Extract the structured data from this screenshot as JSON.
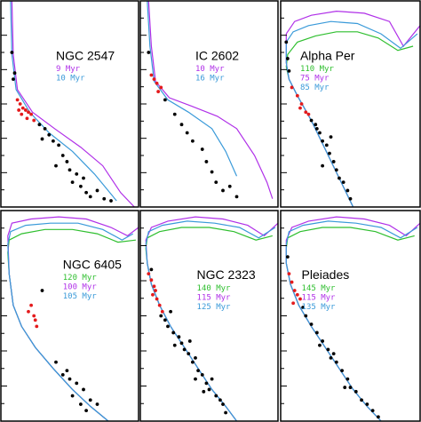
{
  "chart_data": [
    {
      "type": "scatter",
      "title": "NGC 2547",
      "xlim": [
        0,
        100
      ],
      "ylim": [
        100,
        0
      ],
      "series": [
        {
          "name": "9 Myr",
          "color": "#b030e8",
          "x": [
            8,
            9,
            12,
            23,
            39,
            58,
            74,
            87,
            97
          ],
          "values": [
            0,
            26,
            43,
            54,
            62,
            71,
            80,
            93,
            100
          ]
        },
        {
          "name": "10 Myr",
          "color": "#3a9ad9",
          "x": [
            7,
            8,
            11,
            21,
            35,
            52,
            68,
            84
          ],
          "values": [
            0,
            26,
            43,
            54,
            64,
            73,
            84,
            97
          ]
        },
        {
          "color": "#e41a1c",
          "x": [
            12,
            14,
            16,
            18,
            20,
            22,
            15,
            19,
            24,
            13
          ],
          "values": [
            48,
            50,
            52,
            53,
            54,
            55,
            55,
            57,
            58,
            53
          ]
        },
        {
          "color": "#000000",
          "x": [
            28,
            32,
            35,
            30,
            38,
            42,
            45,
            48,
            40,
            50,
            55,
            52,
            58,
            60,
            62,
            65,
            70,
            75,
            80,
            10,
            8,
            9
          ],
          "values": [
            60,
            62,
            65,
            67,
            68,
            70,
            75,
            78,
            80,
            82,
            84,
            88,
            90,
            86,
            93,
            95,
            92,
            96,
            97,
            35,
            25,
            38
          ]
        }
      ]
    },
    {
      "type": "scatter",
      "title": "IC 2602",
      "xlim": [
        0,
        100
      ],
      "ylim": [
        100,
        0
      ],
      "series": [
        {
          "name": "10 Myr",
          "color": "#b030e8",
          "x": [
            6,
            8,
            11,
            21,
            37,
            56,
            70,
            83,
            92,
            96
          ],
          "values": [
            0,
            22,
            39,
            47,
            51,
            56,
            62,
            75,
            88,
            96
          ]
        },
        {
          "name": "16 Myr",
          "color": "#3a9ad9",
          "x": [
            5,
            7,
            10,
            20,
            35,
            52,
            62,
            70
          ],
          "values": [
            0,
            22,
            39,
            48,
            54,
            62,
            73,
            85
          ]
        },
        {
          "color": "#e41a1c",
          "x": [
            8,
            10,
            12,
            15,
            13
          ],
          "values": [
            36,
            38,
            40,
            42,
            44
          ]
        },
        {
          "color": "#000000",
          "x": [
            6,
            18,
            25,
            30,
            38,
            48,
            52,
            55,
            60,
            65,
            70,
            45,
            34
          ],
          "values": [
            25,
            48,
            55,
            60,
            68,
            78,
            83,
            88,
            92,
            90,
            95,
            72,
            64
          ]
        }
      ]
    },
    {
      "type": "scatter",
      "title": "Alpha Per",
      "xlim": [
        0,
        100
      ],
      "ylim": [
        100,
        0
      ],
      "series": [
        {
          "name": "110 Myr",
          "color": "#2fbf2f",
          "x": [
            95,
            84,
            70,
            55,
            40,
            25,
            12,
            5,
            4,
            6,
            12,
            22,
            32,
            42,
            52
          ],
          "values": [
            22,
            24,
            18,
            15,
            15,
            17,
            20,
            26,
            32,
            38,
            46,
            58,
            72,
            86,
            100
          ]
        },
        {
          "name": "75 Myr",
          "color": "#b030e8",
          "x": [
            100,
            88,
            78,
            60,
            40,
            22,
            10,
            4,
            4,
            6,
            12,
            22,
            32,
            42,
            52
          ],
          "values": [
            12,
            22,
            10,
            6,
            5,
            7,
            10,
            16,
            30,
            38,
            46,
            58,
            72,
            86,
            100
          ]
        },
        {
          "name": "85 Myr",
          "color": "#3a9ad9",
          "x": [
            98,
            86,
            72,
            55,
            36,
            20,
            9,
            4,
            4,
            6,
            12,
            22,
            32,
            42,
            52
          ],
          "values": [
            16,
            23,
            16,
            11,
            10,
            12,
            15,
            20,
            30,
            38,
            46,
            58,
            72,
            86,
            100
          ]
        },
        {
          "color": "#e41a1c",
          "x": [
            8,
            12,
            15,
            14,
            18,
            20
          ],
          "values": [
            42,
            46,
            50,
            52,
            54,
            55
          ]
        },
        {
          "color": "#000000",
          "x": [
            4,
            5,
            6,
            22,
            25,
            28,
            30,
            33,
            35,
            38,
            40,
            42,
            45,
            48,
            30,
            50,
            36,
            26
          ],
          "values": [
            20,
            28,
            34,
            58,
            60,
            64,
            68,
            70,
            74,
            78,
            82,
            86,
            88,
            92,
            80,
            96,
            66,
            62
          ]
        }
      ]
    },
    {
      "type": "scatter",
      "title": "NGC 6405",
      "xlim": [
        0,
        100
      ],
      "ylim": [
        100,
        0
      ],
      "series": [
        {
          "name": "120 Myr",
          "color": "#2fbf2f",
          "x": [
            98,
            85,
            70,
            52,
            32,
            15,
            6,
            5,
            6,
            9,
            15,
            25,
            38,
            52,
            65,
            78
          ],
          "values": [
            14,
            15,
            11,
            9,
            9,
            11,
            14,
            20,
            30,
            45,
            55,
            65,
            75,
            85,
            93,
            100
          ]
        },
        {
          "name": "100 Myr",
          "color": "#b030e8",
          "x": [
            100,
            92,
            80,
            62,
            42,
            22,
            8,
            5,
            6,
            9,
            15,
            25,
            38,
            52,
            65,
            78
          ],
          "values": [
            8,
            12,
            8,
            4,
            3,
            4,
            6,
            12,
            30,
            45,
            55,
            65,
            75,
            85,
            93,
            100
          ]
        },
        {
          "name": "105 Myr",
          "color": "#3a9ad9",
          "x": [
            96,
            88,
            74,
            56,
            36,
            18,
            7,
            5,
            6,
            9,
            15,
            25,
            38,
            52,
            65,
            78
          ],
          "values": [
            11,
            14,
            9,
            6,
            6,
            7,
            10,
            16,
            30,
            45,
            55,
            65,
            75,
            85,
            93,
            100
          ]
        },
        {
          "color": "#e41a1c",
          "x": [
            22,
            24,
            25,
            26,
            20
          ],
          "values": [
            45,
            50,
            52,
            55,
            48
          ]
        },
        {
          "color": "#000000",
          "x": [
            30,
            40,
            45,
            50,
            55,
            60,
            52,
            48,
            65,
            70,
            58,
            62
          ],
          "values": [
            38,
            72,
            78,
            80,
            82,
            85,
            88,
            76,
            90,
            92,
            92,
            95
          ]
        }
      ]
    },
    {
      "type": "scatter",
      "title": "NGC 2323",
      "xlim": [
        0,
        100
      ],
      "ylim": [
        100,
        0
      ],
      "series": [
        {
          "name": "140 Myr",
          "color": "#2fbf2f",
          "x": [
            96,
            84,
            68,
            50,
            30,
            14,
            5,
            4,
            5,
            8,
            14,
            22,
            32,
            42,
            52,
            62,
            70
          ],
          "values": [
            12,
            14,
            10,
            8,
            8,
            10,
            13,
            18,
            25,
            35,
            45,
            55,
            65,
            75,
            85,
            93,
            100
          ]
        },
        {
          "name": "115 Myr",
          "color": "#b030e8",
          "x": [
            100,
            90,
            78,
            60,
            40,
            20,
            8,
            4,
            5,
            8,
            14,
            22,
            32,
            42,
            52,
            62,
            70
          ],
          "values": [
            6,
            12,
            7,
            4,
            3,
            5,
            8,
            14,
            25,
            35,
            45,
            55,
            65,
            75,
            85,
            93,
            100
          ]
        },
        {
          "name": "125 Myr",
          "color": "#3a9ad9",
          "x": [
            98,
            86,
            72,
            54,
            34,
            16,
            6,
            4,
            5,
            8,
            14,
            22,
            32,
            42,
            52,
            62,
            70
          ],
          "values": [
            8,
            13,
            8,
            6,
            5,
            7,
            10,
            16,
            25,
            35,
            45,
            55,
            65,
            75,
            85,
            93,
            100
          ]
        },
        {
          "color": "#e41a1c",
          "x": [
            6,
            8,
            10,
            9,
            12,
            14,
            16,
            11
          ],
          "values": [
            30,
            33,
            36,
            40,
            42,
            45,
            48,
            38
          ]
        },
        {
          "color": "#000000",
          "x": [
            8,
            15,
            18,
            20,
            24,
            28,
            30,
            32,
            35,
            38,
            40,
            42,
            45,
            48,
            50,
            52,
            55,
            58,
            60,
            46,
            36,
            25,
            62,
            22,
            40
          ],
          "values": [
            28,
            50,
            52,
            55,
            58,
            60,
            63,
            66,
            68,
            72,
            70,
            76,
            78,
            82,
            85,
            80,
            88,
            90,
            92,
            86,
            62,
            64,
            96,
            48,
            80
          ]
        }
      ]
    },
    {
      "type": "scatter",
      "title": "Pleiades",
      "xlim": [
        0,
        100
      ],
      "ylim": [
        100,
        0
      ],
      "series": [
        {
          "name": "145 Myr",
          "color": "#2fbf2f",
          "x": [
            96,
            84,
            68,
            50,
            30,
            14,
            5,
            4,
            4,
            7,
            13,
            22,
            32,
            42,
            52,
            62,
            72
          ],
          "values": [
            12,
            14,
            10,
            8,
            8,
            10,
            13,
            18,
            25,
            35,
            45,
            55,
            65,
            75,
            85,
            93,
            100
          ]
        },
        {
          "name": "115 Myr",
          "color": "#b030e8",
          "x": [
            100,
            90,
            78,
            60,
            40,
            20,
            8,
            4,
            4,
            7,
            13,
            22,
            32,
            42,
            52,
            62,
            72
          ],
          "values": [
            6,
            12,
            7,
            4,
            3,
            5,
            8,
            14,
            25,
            35,
            45,
            55,
            65,
            75,
            85,
            93,
            100
          ]
        },
        {
          "name": "135 Myr",
          "color": "#3a9ad9",
          "x": [
            98,
            86,
            72,
            54,
            34,
            16,
            6,
            4,
            4,
            7,
            13,
            22,
            32,
            42,
            52,
            62,
            72
          ],
          "values": [
            8,
            13,
            8,
            6,
            5,
            7,
            10,
            16,
            25,
            35,
            45,
            55,
            65,
            75,
            85,
            93,
            100
          ]
        },
        {
          "color": "#e41a1c",
          "x": [
            6,
            8,
            10,
            12,
            14,
            9
          ],
          "values": [
            30,
            34,
            38,
            40,
            42,
            44
          ]
        },
        {
          "color": "#000000",
          "x": [
            5,
            16,
            18,
            22,
            26,
            30,
            34,
            36,
            40,
            44,
            48,
            50,
            54,
            58,
            62,
            66,
            70,
            46,
            38,
            28
          ],
          "values": [
            22,
            46,
            50,
            54,
            58,
            62,
            66,
            70,
            72,
            76,
            80,
            84,
            86,
            90,
            92,
            95,
            98,
            84,
            68,
            64
          ]
        }
      ]
    }
  ]
}
